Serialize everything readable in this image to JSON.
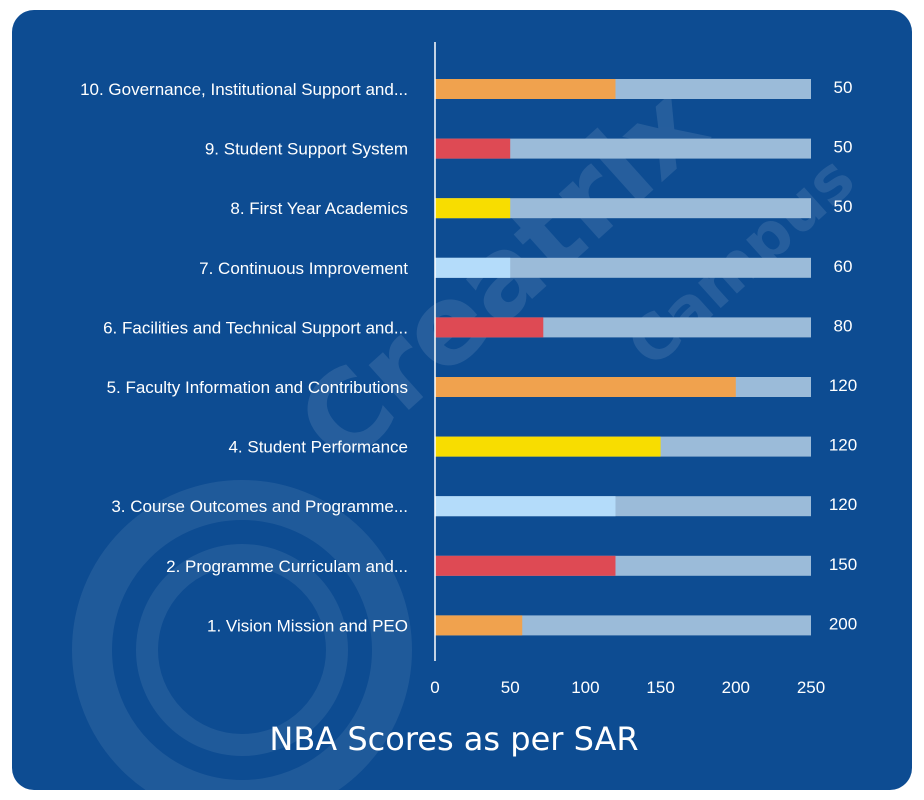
{
  "watermark": {
    "brand": "Creatrix",
    "sub": "Campus"
  },
  "chart_data": {
    "type": "bar",
    "orientation": "horizontal",
    "title": "NBA Scores as per SAR",
    "xlim": [
      0,
      250
    ],
    "x_ticks": [
      0,
      50,
      100,
      150,
      200,
      250
    ],
    "grid": false,
    "categories": [
      "10. Governance, Institutional Support and...",
      "9. Student Support System",
      "8. First Year Academics",
      "7. Continuous Improvement",
      "6. Facilities and Technical Support and...",
      "5. Faculty Information and Contributions",
      "4. Student Performance",
      "3. Course Outcomes and Programme...",
      "2. Programme Curriculam and...",
      "1. Vision Mission and PEO"
    ],
    "values": [
      120,
      50,
      50,
      50,
      72,
      200,
      150,
      120,
      120,
      58
    ],
    "max_labels": [
      "50",
      "50",
      "50",
      "60",
      "80",
      "120",
      "120",
      "120",
      "150",
      "200"
    ],
    "background_bar_value": 250,
    "colors": [
      "#f0a24e",
      "#de4a54",
      "#f8dd00",
      "#b4dcfa",
      "#de4a54",
      "#f0a24e",
      "#f8dd00",
      "#b4dcfa",
      "#de4a54",
      "#f0a24e"
    ],
    "track_color": "#9bbbd9",
    "background_color": "#0d4c92"
  }
}
